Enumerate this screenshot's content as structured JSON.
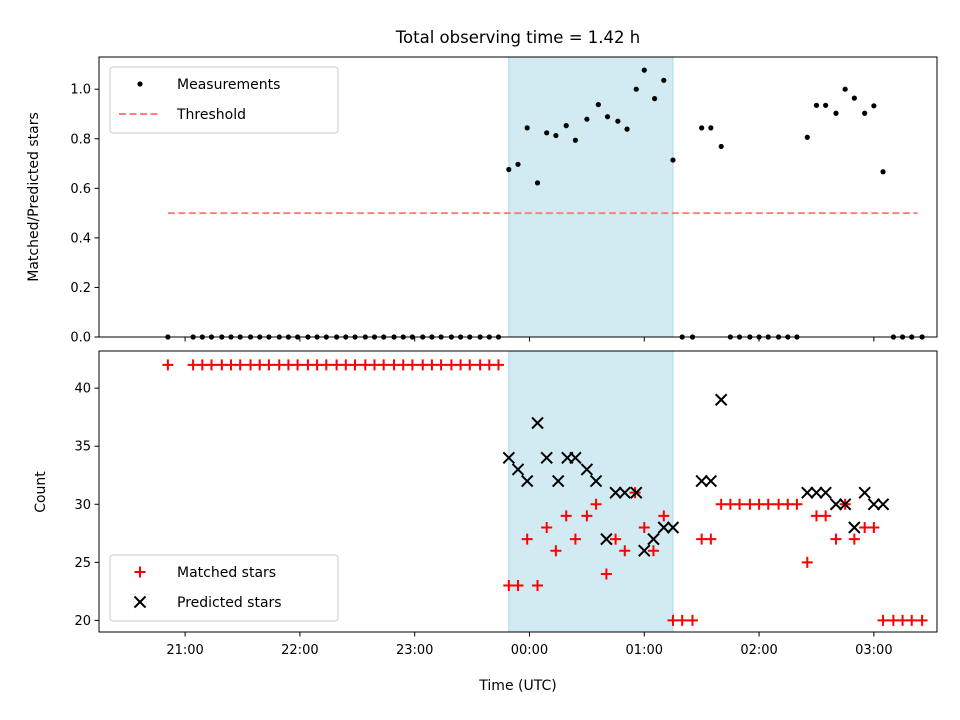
{
  "chart_data": {
    "type": "scatter",
    "title": "Total observing time = 1.42 h",
    "xlabel": "Time (UTC)",
    "x_unit": "UTC hours (continuing past midnight, 24 = 00:00)",
    "xlim": [
      20.25,
      27.55
    ],
    "xticks": [
      21,
      22,
      23,
      24,
      25,
      26,
      27
    ],
    "xtick_labels": [
      "21:00",
      "22:00",
      "23:00",
      "00:00",
      "01:00",
      "02:00",
      "03:00"
    ],
    "shaded_span": {
      "x_start": 23.82,
      "x_end": 25.25,
      "color": "#add8e6"
    },
    "panels": [
      {
        "name": "ratio",
        "ylabel": "Matched/Predicted stars",
        "ylim": [
          0,
          1.13
        ],
        "yticks": [
          0.0,
          0.2,
          0.4,
          0.6,
          0.8,
          1.0
        ],
        "ytick_labels": [
          "0.0",
          "0.2",
          "0.4",
          "0.6",
          "0.8",
          "1.0"
        ],
        "legend_position": "upper-left",
        "series": [
          {
            "name": "Measurements",
            "marker": "dot",
            "color": "#000000",
            "points": [
              [
                20.85,
                0
              ],
              [
                21.07,
                0
              ],
              [
                21.15,
                0
              ],
              [
                21.23,
                0
              ],
              [
                21.32,
                0
              ],
              [
                21.4,
                0
              ],
              [
                21.48,
                0
              ],
              [
                21.57,
                0
              ],
              [
                21.65,
                0
              ],
              [
                21.73,
                0
              ],
              [
                21.82,
                0
              ],
              [
                21.9,
                0
              ],
              [
                21.98,
                0
              ],
              [
                22.07,
                0
              ],
              [
                22.15,
                0
              ],
              [
                22.23,
                0
              ],
              [
                22.32,
                0
              ],
              [
                22.4,
                0
              ],
              [
                22.48,
                0
              ],
              [
                22.57,
                0
              ],
              [
                22.65,
                0
              ],
              [
                22.73,
                0
              ],
              [
                22.82,
                0
              ],
              [
                22.9,
                0
              ],
              [
                22.98,
                0
              ],
              [
                23.07,
                0
              ],
              [
                23.15,
                0
              ],
              [
                23.23,
                0
              ],
              [
                23.32,
                0
              ],
              [
                23.4,
                0
              ],
              [
                23.48,
                0
              ],
              [
                23.57,
                0
              ],
              [
                23.65,
                0
              ],
              [
                23.73,
                0
              ],
              [
                23.82,
                0.676
              ],
              [
                23.9,
                0.697
              ],
              [
                23.98,
                0.844
              ],
              [
                24.07,
                0.622
              ],
              [
                24.15,
                0.824
              ],
              [
                24.23,
                0.813
              ],
              [
                24.32,
                0.853
              ],
              [
                24.4,
                0.794
              ],
              [
                24.5,
                0.879
              ],
              [
                24.6,
                0.938
              ],
              [
                24.68,
                0.889
              ],
              [
                24.77,
                0.871
              ],
              [
                24.85,
                0.839
              ],
              [
                24.93,
                1.0
              ],
              [
                25.0,
                1.077
              ],
              [
                25.09,
                0.962
              ],
              [
                25.17,
                1.036
              ],
              [
                25.25,
                0.714
              ],
              [
                25.33,
                0
              ],
              [
                25.42,
                0
              ],
              [
                25.5,
                0.844
              ],
              [
                25.58,
                0.844
              ],
              [
                25.67,
                0.769
              ],
              [
                25.75,
                0
              ],
              [
                25.83,
                0
              ],
              [
                25.92,
                0
              ],
              [
                26.0,
                0
              ],
              [
                26.08,
                0
              ],
              [
                26.17,
                0
              ],
              [
                26.25,
                0
              ],
              [
                26.33,
                0
              ],
              [
                26.42,
                0.806
              ],
              [
                26.5,
                0.935
              ],
              [
                26.58,
                0.935
              ],
              [
                26.67,
                0.903
              ],
              [
                26.75,
                1.0
              ],
              [
                26.83,
                0.964
              ],
              [
                26.92,
                0.903
              ],
              [
                27.0,
                0.933
              ],
              [
                27.08,
                0.667
              ],
              [
                27.17,
                0
              ],
              [
                27.25,
                0
              ],
              [
                27.33,
                0
              ],
              [
                27.42,
                0
              ]
            ]
          },
          {
            "name": "Threshold",
            "marker": "dashed-line",
            "color": "#ff8080",
            "points": [
              [
                20.85,
                0.5
              ],
              [
                27.38,
                0.5
              ]
            ]
          }
        ]
      },
      {
        "name": "counts",
        "ylabel": "Count",
        "ylim": [
          19,
          43.2
        ],
        "yticks": [
          20,
          25,
          30,
          35,
          40
        ],
        "ytick_labels": [
          "20",
          "25",
          "30",
          "35",
          "40"
        ],
        "legend_position": "lower-left",
        "series": [
          {
            "name": "Matched stars",
            "marker": "plus",
            "color": "#ff0000",
            "points": [
              [
                20.85,
                42
              ],
              [
                21.07,
                42
              ],
              [
                21.15,
                42
              ],
              [
                21.23,
                42
              ],
              [
                21.32,
                42
              ],
              [
                21.4,
                42
              ],
              [
                21.48,
                42
              ],
              [
                21.57,
                42
              ],
              [
                21.65,
                42
              ],
              [
                21.73,
                42
              ],
              [
                21.82,
                42
              ],
              [
                21.9,
                42
              ],
              [
                21.98,
                42
              ],
              [
                22.07,
                42
              ],
              [
                22.15,
                42
              ],
              [
                22.23,
                42
              ],
              [
                22.32,
                42
              ],
              [
                22.4,
                42
              ],
              [
                22.48,
                42
              ],
              [
                22.57,
                42
              ],
              [
                22.65,
                42
              ],
              [
                22.73,
                42
              ],
              [
                22.82,
                42
              ],
              [
                22.9,
                42
              ],
              [
                22.98,
                42
              ],
              [
                23.07,
                42
              ],
              [
                23.15,
                42
              ],
              [
                23.23,
                42
              ],
              [
                23.32,
                42
              ],
              [
                23.4,
                42
              ],
              [
                23.48,
                42
              ],
              [
                23.57,
                42
              ],
              [
                23.65,
                42
              ],
              [
                23.73,
                42
              ],
              [
                23.82,
                23
              ],
              [
                23.9,
                23
              ],
              [
                23.98,
                27
              ],
              [
                24.07,
                23
              ],
              [
                24.15,
                28
              ],
              [
                24.23,
                26
              ],
              [
                24.32,
                29
              ],
              [
                24.4,
                27
              ],
              [
                24.5,
                29
              ],
              [
                24.58,
                30
              ],
              [
                24.67,
                24
              ],
              [
                24.75,
                27
              ],
              [
                24.83,
                26
              ],
              [
                24.92,
                31
              ],
              [
                25.0,
                28
              ],
              [
                25.08,
                26
              ],
              [
                25.17,
                29
              ],
              [
                25.25,
                20
              ],
              [
                25.33,
                20
              ],
              [
                25.42,
                20
              ],
              [
                25.5,
                27
              ],
              [
                25.58,
                27
              ],
              [
                25.67,
                30
              ],
              [
                25.75,
                30
              ],
              [
                25.83,
                30
              ],
              [
                25.92,
                30
              ],
              [
                26.0,
                30
              ],
              [
                26.08,
                30
              ],
              [
                26.17,
                30
              ],
              [
                26.25,
                30
              ],
              [
                26.33,
                30
              ],
              [
                26.42,
                25
              ],
              [
                26.5,
                29
              ],
              [
                26.58,
                29
              ],
              [
                26.67,
                27
              ],
              [
                26.75,
                30
              ],
              [
                26.83,
                27
              ],
              [
                26.92,
                28
              ],
              [
                27.0,
                28
              ],
              [
                27.08,
                20
              ],
              [
                27.17,
                20
              ],
              [
                27.25,
                20
              ],
              [
                27.33,
                20
              ],
              [
                27.42,
                20
              ]
            ]
          },
          {
            "name": "Predicted stars",
            "marker": "x",
            "color": "#000000",
            "points": [
              [
                23.82,
                34
              ],
              [
                23.9,
                33
              ],
              [
                23.98,
                32
              ],
              [
                24.07,
                37
              ],
              [
                24.15,
                34
              ],
              [
                24.25,
                32
              ],
              [
                24.33,
                34
              ],
              [
                24.4,
                34
              ],
              [
                24.5,
                33
              ],
              [
                24.58,
                32
              ],
              [
                24.67,
                27
              ],
              [
                24.75,
                31
              ],
              [
                24.83,
                31
              ],
              [
                24.93,
                31
              ],
              [
                25.0,
                26
              ],
              [
                25.08,
                27
              ],
              [
                25.17,
                28
              ],
              [
                25.25,
                28
              ],
              [
                25.5,
                32
              ],
              [
                25.58,
                32
              ],
              [
                25.67,
                39
              ],
              [
                26.42,
                31
              ],
              [
                26.5,
                31
              ],
              [
                26.58,
                31
              ],
              [
                26.67,
                30
              ],
              [
                26.75,
                30
              ],
              [
                26.83,
                28
              ],
              [
                26.92,
                31
              ],
              [
                27.0,
                30
              ],
              [
                27.08,
                30
              ]
            ]
          }
        ]
      }
    ]
  }
}
